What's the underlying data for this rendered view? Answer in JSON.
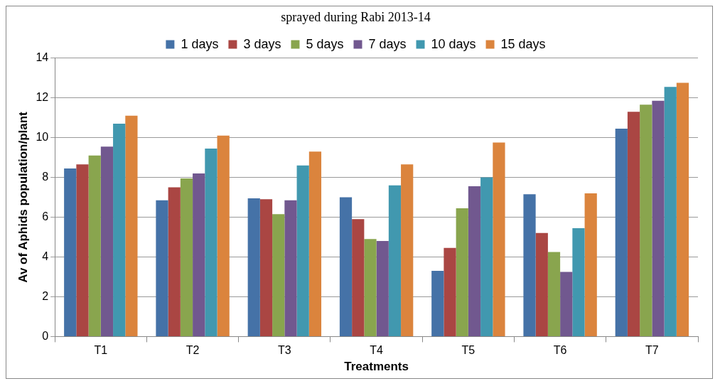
{
  "chart_data": {
    "type": "bar",
    "title": "sprayed during Rabi 2013-14",
    "xlabel": "Treatments",
    "ylabel": "Av of Aphids population/plant",
    "categories": [
      "T1",
      "T2",
      "T3",
      "T4",
      "T5",
      "T6",
      "T7"
    ],
    "series": [
      {
        "name": "1 days",
        "color": "#4572a7",
        "values": [
          8.45,
          6.85,
          6.95,
          7.0,
          3.3,
          7.15,
          10.45
        ]
      },
      {
        "name": "3 days",
        "color": "#aa4643",
        "values": [
          8.65,
          7.5,
          6.9,
          5.9,
          4.45,
          5.2,
          11.3
        ]
      },
      {
        "name": "5 days",
        "color": "#89a54e",
        "values": [
          9.1,
          7.95,
          6.15,
          4.9,
          6.45,
          4.25,
          11.65
        ]
      },
      {
        "name": "7 days",
        "color": "#71588f",
        "values": [
          9.55,
          8.2,
          6.85,
          4.8,
          7.55,
          3.25,
          11.85
        ]
      },
      {
        "name": "10 days",
        "color": "#4198af",
        "values": [
          10.7,
          9.45,
          8.6,
          7.6,
          8.0,
          5.45,
          12.55
        ]
      },
      {
        "name": "15 days",
        "color": "#db843d",
        "values": [
          11.1,
          10.1,
          9.3,
          8.65,
          9.75,
          7.2,
          12.75
        ]
      }
    ],
    "ylim": [
      0,
      14
    ],
    "yticks": [
      0,
      2,
      4,
      6,
      8,
      10,
      12,
      14
    ],
    "grid": "y",
    "legend": "top"
  }
}
